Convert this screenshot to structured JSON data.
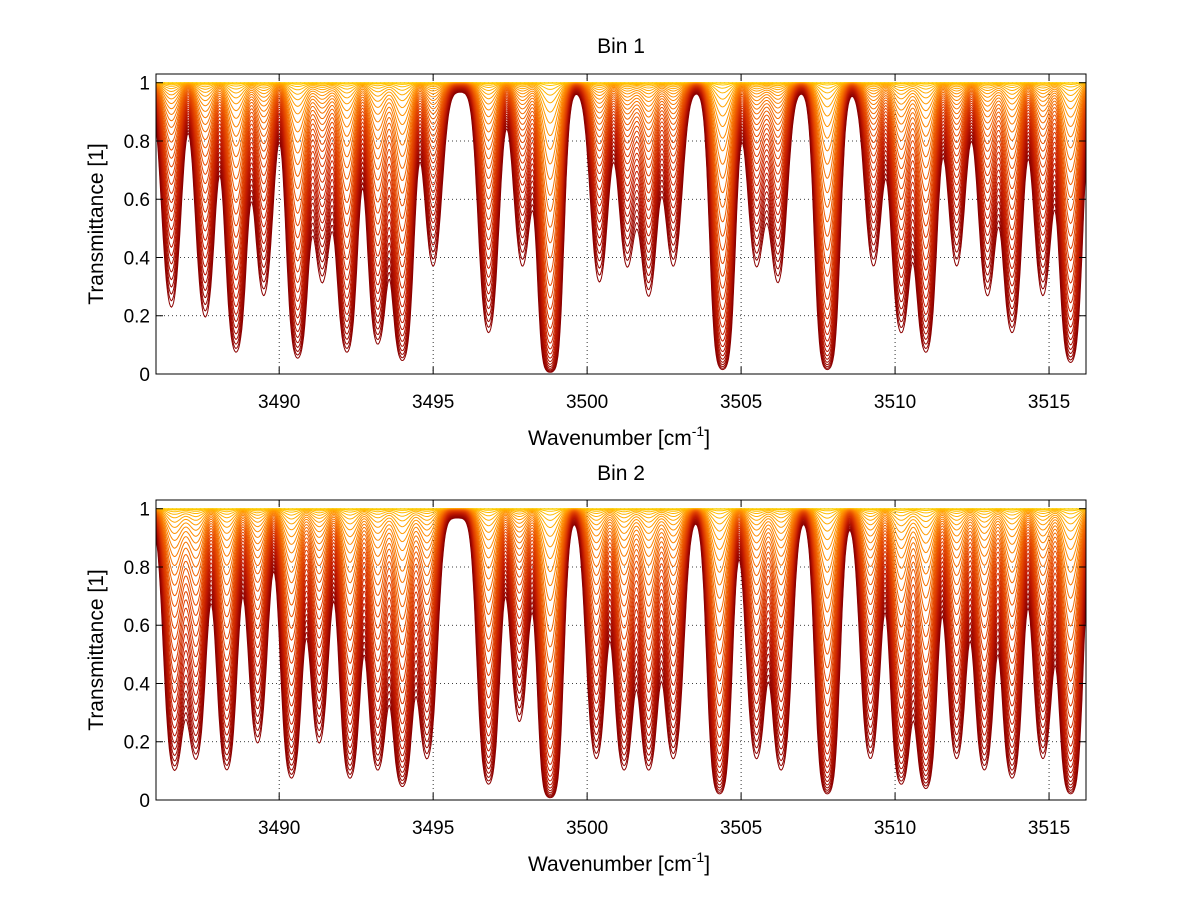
{
  "chart_data": [
    {
      "type": "line",
      "title": "Bin 1",
      "xlabel": "Wavenumber [cm",
      "xlabel_sup": "-1",
      "xlabel_tail": "]",
      "ylabel": "Transmittance [1]",
      "xlim": [
        3486,
        3516.2
      ],
      "ylim": [
        0,
        1.03
      ],
      "xticks": [
        3490,
        3495,
        3500,
        3505,
        3510,
        3515
      ],
      "xtick_labels": [
        "3490",
        "3495",
        "3500",
        "3505",
        "3510",
        "3515"
      ],
      "yticks": [
        0,
        0.2,
        0.4,
        0.6,
        0.8,
        1
      ],
      "ytick_labels": [
        "0",
        "0.2",
        "0.4",
        "0.6",
        "0.8",
        "1"
      ],
      "grid": true,
      "grid_style": "dotted",
      "series_count": 36,
      "colormap": [
        "#8b0000",
        "#c21a00",
        "#e64a00",
        "#ff8c00",
        "#ffd700"
      ],
      "absorption_lines": [
        {
          "x": 3486.5,
          "strength": 0.45
        },
        {
          "x": 3487.6,
          "strength": 0.5
        },
        {
          "x": 3488.6,
          "strength": 0.8
        },
        {
          "x": 3489.5,
          "strength": 0.4
        },
        {
          "x": 3490.6,
          "strength": 0.9
        },
        {
          "x": 3491.4,
          "strength": 0.35
        },
        {
          "x": 3492.2,
          "strength": 0.8
        },
        {
          "x": 3493.2,
          "strength": 0.7
        },
        {
          "x": 3494.0,
          "strength": 0.95
        },
        {
          "x": 3495.0,
          "strength": 0.3
        },
        {
          "x": 3496.8,
          "strength": 0.6
        },
        {
          "x": 3497.9,
          "strength": 0.3
        },
        {
          "x": 3498.8,
          "strength": 1.6
        },
        {
          "x": 3500.4,
          "strength": 0.35
        },
        {
          "x": 3501.3,
          "strength": 0.3
        },
        {
          "x": 3502.0,
          "strength": 0.4
        },
        {
          "x": 3502.8,
          "strength": 0.3
        },
        {
          "x": 3504.4,
          "strength": 1.3
        },
        {
          "x": 3505.5,
          "strength": 0.3
        },
        {
          "x": 3506.2,
          "strength": 0.35
        },
        {
          "x": 3507.8,
          "strength": 1.3
        },
        {
          "x": 3509.3,
          "strength": 0.3
        },
        {
          "x": 3510.2,
          "strength": 0.6
        },
        {
          "x": 3511.0,
          "strength": 0.8
        },
        {
          "x": 3512.0,
          "strength": 0.3
        },
        {
          "x": 3513.0,
          "strength": 0.4
        },
        {
          "x": 3513.8,
          "strength": 0.6
        },
        {
          "x": 3514.8,
          "strength": 0.4
        },
        {
          "x": 3515.7,
          "strength": 1.0
        }
      ],
      "line_width": 0.32,
      "optical_depth_scale": [
        0,
        3.2
      ]
    },
    {
      "type": "line",
      "title": "Bin 2",
      "xlabel": "Wavenumber [cm",
      "xlabel_sup": "-1",
      "xlabel_tail": "]",
      "ylabel": "Transmittance [1]",
      "xlim": [
        3486,
        3516.2
      ],
      "ylim": [
        0,
        1.03
      ],
      "xticks": [
        3490,
        3495,
        3500,
        3505,
        3510,
        3515
      ],
      "xtick_labels": [
        "3490",
        "3495",
        "3500",
        "3505",
        "3510",
        "3515"
      ],
      "yticks": [
        0,
        0.2,
        0.4,
        0.6,
        0.8,
        1
      ],
      "ytick_labels": [
        "0",
        "0.2",
        "0.4",
        "0.6",
        "0.8",
        "1"
      ],
      "grid": true,
      "grid_style": "dotted",
      "series_count": 36,
      "colormap": [
        "#8b0000",
        "#c21a00",
        "#e64a00",
        "#ff8c00",
        "#ffd700"
      ],
      "absorption_lines": [
        {
          "x": 3486.6,
          "strength": 0.7
        },
        {
          "x": 3487.3,
          "strength": 0.6
        },
        {
          "x": 3488.3,
          "strength": 0.7
        },
        {
          "x": 3489.3,
          "strength": 0.5
        },
        {
          "x": 3490.4,
          "strength": 0.8
        },
        {
          "x": 3491.3,
          "strength": 0.5
        },
        {
          "x": 3492.3,
          "strength": 0.8
        },
        {
          "x": 3493.2,
          "strength": 0.7
        },
        {
          "x": 3494.0,
          "strength": 0.95
        },
        {
          "x": 3494.8,
          "strength": 0.6
        },
        {
          "x": 3496.8,
          "strength": 0.9
        },
        {
          "x": 3497.8,
          "strength": 0.4
        },
        {
          "x": 3498.8,
          "strength": 1.5
        },
        {
          "x": 3500.3,
          "strength": 0.6
        },
        {
          "x": 3501.2,
          "strength": 0.7
        },
        {
          "x": 3502.0,
          "strength": 0.7
        },
        {
          "x": 3502.8,
          "strength": 0.6
        },
        {
          "x": 3504.3,
          "strength": 1.2
        },
        {
          "x": 3505.5,
          "strength": 0.6
        },
        {
          "x": 3506.3,
          "strength": 0.7
        },
        {
          "x": 3507.8,
          "strength": 1.2
        },
        {
          "x": 3509.2,
          "strength": 0.6
        },
        {
          "x": 3510.2,
          "strength": 0.9
        },
        {
          "x": 3511.0,
          "strength": 1.0
        },
        {
          "x": 3512.0,
          "strength": 0.6
        },
        {
          "x": 3512.9,
          "strength": 0.7
        },
        {
          "x": 3513.8,
          "strength": 0.8
        },
        {
          "x": 3514.8,
          "strength": 0.6
        },
        {
          "x": 3515.7,
          "strength": 1.2
        }
      ],
      "line_width": 0.32,
      "optical_depth_scale": [
        0,
        3.2
      ]
    }
  ]
}
